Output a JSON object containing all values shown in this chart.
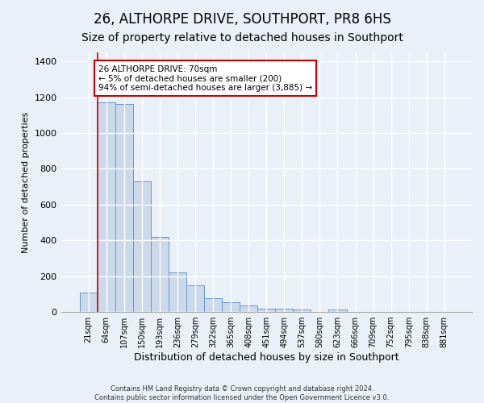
{
  "title": "26, ALTHORPE DRIVE, SOUTHPORT, PR8 6HS",
  "subtitle": "Size of property relative to detached houses in Southport",
  "xlabel": "Distribution of detached houses by size in Southport",
  "ylabel": "Number of detached properties",
  "bar_labels": [
    "21sqm",
    "64sqm",
    "107sqm",
    "150sqm",
    "193sqm",
    "236sqm",
    "279sqm",
    "322sqm",
    "365sqm",
    "408sqm",
    "451sqm",
    "494sqm",
    "537sqm",
    "580sqm",
    "623sqm",
    "666sqm",
    "709sqm",
    "752sqm",
    "795sqm",
    "838sqm",
    "881sqm"
  ],
  "bar_values": [
    110,
    1170,
    1160,
    730,
    420,
    220,
    150,
    75,
    55,
    35,
    20,
    20,
    15,
    0,
    15,
    0,
    0,
    0,
    0,
    0,
    0
  ],
  "bar_color": "#ccd9ea",
  "bar_edge_color": "#6699cc",
  "red_line_x": 1,
  "annotation_title": "26 ALTHORPE DRIVE: 70sqm",
  "annotation_line1": "← 5% of detached houses are smaller (200)",
  "annotation_line2": "94% of semi-detached houses are larger (3,885) →",
  "annotation_box_color": "#ffffff",
  "annotation_box_edge_color": "#cc0000",
  "ylim": [
    0,
    1450
  ],
  "yticks": [
    0,
    200,
    400,
    600,
    800,
    1000,
    1200,
    1400
  ],
  "footer1": "Contains HM Land Registry data © Crown copyright and database right 2024.",
  "footer2": "Contains public sector information licensed under the Open Government Licence v3.0.",
  "bg_color": "#eaf0f8",
  "grid_color": "#d8e4f0",
  "title_fontsize": 12,
  "subtitle_fontsize": 10,
  "tick_fontsize": 7,
  "ylabel_fontsize": 8,
  "xlabel_fontsize": 9
}
